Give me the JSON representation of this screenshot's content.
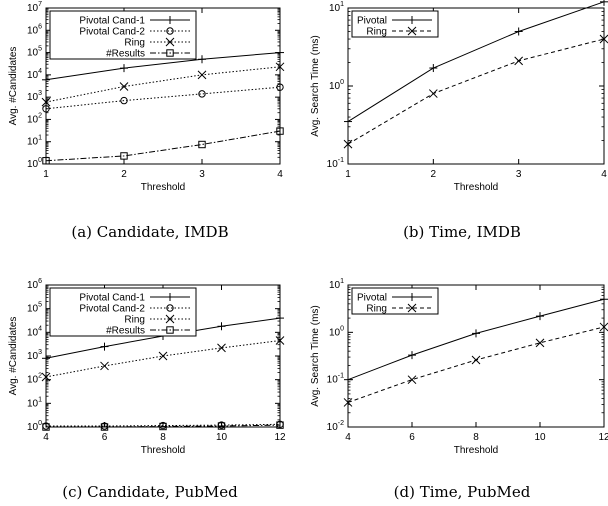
{
  "chart_data": [
    {
      "type": "line",
      "caption": "(a) Candidate, IMDB",
      "xlabel": "Threshold",
      "ylabel": "Avg. #Candidates",
      "yscale": "log",
      "xlim": [
        1,
        4
      ],
      "ylim_exp": [
        0,
        7
      ],
      "x_ticks": [
        1,
        2,
        3,
        4
      ],
      "legend_position": "top-left",
      "series": [
        {
          "name": "Pivotal Cand-1",
          "marker": "plus",
          "dash": "solid",
          "x": [
            1,
            2,
            3,
            4
          ],
          "values": [
            6000,
            20000,
            50000,
            100000
          ]
        },
        {
          "name": "Pivotal Cand-2",
          "marker": "circle",
          "dash": "dotted",
          "x": [
            1,
            2,
            3,
            4
          ],
          "values": [
            300,
            700,
            1400,
            2800
          ]
        },
        {
          "name": "Ring",
          "marker": "cross",
          "dash": "dotted",
          "x": [
            1,
            2,
            3,
            4
          ],
          "values": [
            600,
            3000,
            10000,
            23000
          ]
        },
        {
          "name": "#Results",
          "marker": "square",
          "dash": "dashdot",
          "x": [
            1,
            2,
            3,
            4
          ],
          "values": [
            1.4,
            2.3,
            7.5,
            30
          ]
        }
      ]
    },
    {
      "type": "line",
      "caption": "(b) Time, IMDB",
      "xlabel": "Threshold",
      "ylabel": "Avg. Search Time (ms)",
      "yscale": "log",
      "xlim": [
        1,
        4
      ],
      "ylim_exp": [
        -1,
        1
      ],
      "x_ticks": [
        1,
        2,
        3,
        4
      ],
      "legend_position": "top-left",
      "series": [
        {
          "name": "Pivotal",
          "marker": "plus",
          "dash": "solid",
          "x": [
            1,
            2,
            3,
            4
          ],
          "values": [
            0.35,
            1.7,
            5.0,
            12.0
          ]
        },
        {
          "name": "Ring",
          "marker": "cross",
          "dash": "dashed",
          "x": [
            1,
            2,
            3,
            4
          ],
          "values": [
            0.18,
            0.8,
            2.1,
            4.0
          ]
        }
      ]
    },
    {
      "type": "line",
      "caption": "(c) Candidate, PubMed",
      "xlabel": "Threshold",
      "ylabel": "Avg. #Candidates",
      "yscale": "log",
      "xlim": [
        4,
        12
      ],
      "ylim_exp": [
        0,
        6
      ],
      "x_ticks": [
        4,
        6,
        8,
        10,
        12
      ],
      "legend_position": "top-left",
      "series": [
        {
          "name": "Pivotal Cand-1",
          "marker": "plus",
          "dash": "solid",
          "x": [
            4,
            6,
            8,
            10,
            12
          ],
          "values": [
            800,
            2500,
            7000,
            18000,
            40000
          ]
        },
        {
          "name": "Pivotal Cand-2",
          "marker": "circle",
          "dash": "dotted",
          "x": [
            4,
            6,
            8,
            10,
            12
          ],
          "values": [
            1.1,
            1.1,
            1.15,
            1.2,
            1.3
          ]
        },
        {
          "name": "Ring",
          "marker": "cross",
          "dash": "dotted",
          "x": [
            4,
            6,
            8,
            10,
            12
          ],
          "values": [
            130,
            380,
            1000,
            2200,
            4500
          ]
        },
        {
          "name": "#Results",
          "marker": "square",
          "dash": "dashdot",
          "x": [
            4,
            6,
            8,
            10,
            12
          ],
          "values": [
            1.0,
            1.0,
            1.05,
            1.1,
            1.2
          ]
        }
      ]
    },
    {
      "type": "line",
      "caption": "(d) Time, PubMed",
      "xlabel": "Threshold",
      "ylabel": "Avg. Search Time (ms)",
      "yscale": "log",
      "xlim": [
        4,
        12
      ],
      "ylim_exp": [
        -2,
        1
      ],
      "x_ticks": [
        4,
        6,
        8,
        10,
        12
      ],
      "legend_position": "top-left",
      "series": [
        {
          "name": "Pivotal",
          "marker": "plus",
          "dash": "solid",
          "x": [
            4,
            6,
            8,
            10,
            12
          ],
          "values": [
            0.1,
            0.33,
            0.95,
            2.2,
            5.0
          ]
        },
        {
          "name": "Ring",
          "marker": "cross",
          "dash": "dashed",
          "x": [
            4,
            6,
            8,
            10,
            12
          ],
          "values": [
            0.033,
            0.1,
            0.26,
            0.6,
            1.3
          ]
        }
      ]
    }
  ]
}
